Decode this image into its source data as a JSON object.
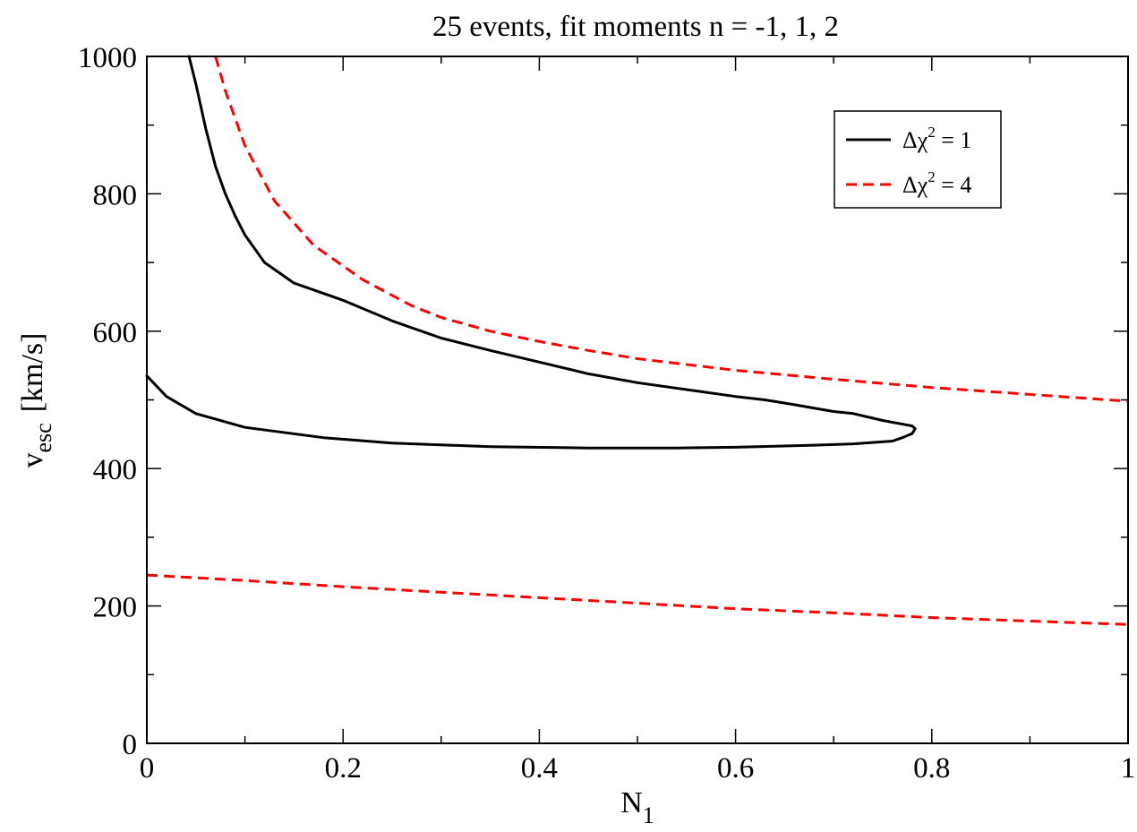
{
  "chart_data": {
    "type": "line",
    "title": "25 events, fit moments n = -1, 1, 2",
    "xlabel": {
      "main": "N",
      "sub": "1"
    },
    "ylabel": {
      "main": "v",
      "sub": "esc",
      "unit": "[km/s]"
    },
    "xlim": [
      0,
      1
    ],
    "ylim": [
      0,
      1000
    ],
    "xticks": [
      {
        "value": 0,
        "label": "0"
      },
      {
        "value": 0.2,
        "label": "0.2"
      },
      {
        "value": 0.4,
        "label": "0.4"
      },
      {
        "value": 0.6,
        "label": "0.6"
      },
      {
        "value": 0.8,
        "label": "0.8"
      },
      {
        "value": 1,
        "label": "1"
      }
    ],
    "yticks": [
      {
        "value": 0,
        "label": "0"
      },
      {
        "value": 200,
        "label": "200"
      },
      {
        "value": 400,
        "label": "400"
      },
      {
        "value": 600,
        "label": "600"
      },
      {
        "value": 800,
        "label": "800"
      },
      {
        "value": 1000,
        "label": "1000"
      }
    ],
    "x_minor_step": 0.1,
    "y_minor_step": 100,
    "grid": false,
    "legend_position": "top-right",
    "legend": [
      {
        "series_index": 0,
        "prefix": "Δχ",
        "sup": "2",
        "suffix": " = 1"
      },
      {
        "series_index": 1,
        "prefix": "Δχ",
        "sup": "2",
        "suffix": " = 4"
      }
    ],
    "series": [
      {
        "style": "solid",
        "color": "#000000",
        "segments": [
          {
            "x": [
              0.043,
              0.05,
              0.06,
              0.07,
              0.08,
              0.09,
              0.1,
              0.12,
              0.15,
              0.2,
              0.25,
              0.3,
              0.35,
              0.4,
              0.45,
              0.5,
              0.55,
              0.6,
              0.63,
              0.66,
              0.7,
              0.72,
              0.75,
              0.78,
              0.783,
              0.78,
              0.77,
              0.76,
              0.72,
              0.68,
              0.6,
              0.54,
              0.45,
              0.35,
              0.25,
              0.18,
              0.1,
              0.05,
              0.02,
              0
            ],
            "y": [
              1000,
              960,
              895,
              840,
              800,
              768,
              740,
              700,
              670,
              645,
              615,
              590,
              572,
              555,
              538,
              525,
              515,
              505,
              500,
              493,
              483,
              480,
              470,
              462,
              458,
              451,
              445,
              440,
              436,
              434,
              431,
              430,
              430,
              432,
              437,
              445,
              460,
              480,
              505,
              535
            ]
          }
        ]
      },
      {
        "style": "dashed",
        "color": "#ff0000",
        "segments": [
          {
            "x": [
              0.07,
              0.08,
              0.1,
              0.13,
              0.17,
              0.22,
              0.27,
              0.3,
              0.35,
              0.4,
              0.45,
              0.5,
              0.6,
              0.7,
              0.8,
              0.9,
              1.0
            ],
            "y": [
              1000,
              950,
              870,
              790,
              725,
              675,
              637,
              620,
              600,
              585,
              572,
              560,
              543,
              530,
              518,
              508,
              498
            ]
          },
          {
            "x": [
              0,
              0.1,
              0.2,
              0.3,
              0.4,
              0.5,
              0.6,
              0.7,
              0.8,
              0.9,
              1.0
            ],
            "y": [
              245,
              237,
              228,
              220,
              212,
              204,
              196,
              190,
              183,
              178,
              173
            ]
          }
        ]
      }
    ]
  }
}
